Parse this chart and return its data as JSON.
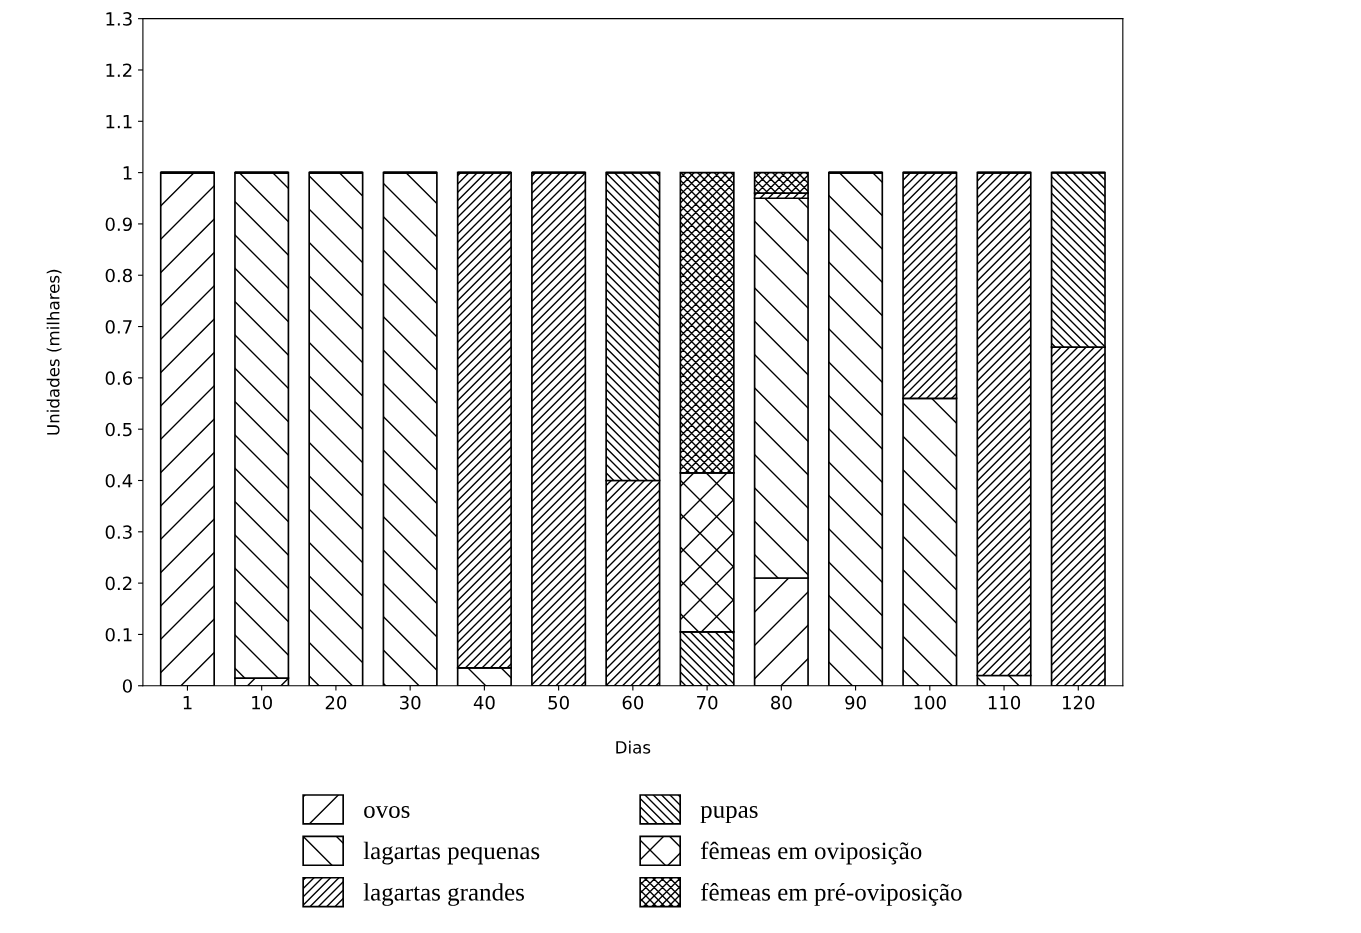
{
  "chart_data": {
    "type": "bar",
    "stacked": true,
    "xlabel": "Dias",
    "ylabel": "Unidades (milhares)",
    "categories": [
      "1",
      "10",
      "20",
      "30",
      "40",
      "50",
      "60",
      "70",
      "80",
      "90",
      "100",
      "110",
      "120"
    ],
    "series": [
      {
        "name": "ovos",
        "color": "#000000",
        "values": [
          1,
          0.015,
          0,
          0,
          0,
          0,
          0,
          0,
          0.21,
          0,
          0,
          0,
          0
        ]
      },
      {
        "name": "lagartas pequenas",
        "color": "#000000",
        "values": [
          0,
          0.985,
          1,
          1,
          0.035,
          0,
          0,
          0,
          0.74,
          1,
          0.56,
          0.02,
          0
        ]
      },
      {
        "name": "lagartas grandes",
        "color": "#000000",
        "values": [
          0,
          0,
          0,
          0,
          0.965,
          1,
          0.4,
          0,
          0.01,
          0,
          0.44,
          0.98,
          0.66
        ]
      },
      {
        "name": "pupas",
        "color": "#000000",
        "values": [
          0,
          0,
          0,
          0,
          0,
          0,
          0.6,
          0.105,
          0,
          0,
          0,
          0,
          0.34
        ]
      },
      {
        "name": "fêmeas em oviposição",
        "color": "#000000",
        "values": [
          0,
          0,
          0,
          0,
          0,
          0,
          0,
          0.31,
          0,
          0,
          0,
          0,
          0
        ]
      },
      {
        "name": "fêmeas em pré-oviposição",
        "color": "#000000",
        "values": [
          0,
          0,
          0,
          0,
          0,
          0,
          0,
          0.585,
          0.04,
          0,
          0,
          0,
          0
        ]
      }
    ],
    "ylim": [
      0,
      1.3
    ],
    "yticks": [
      0,
      0.1,
      0.2,
      0.3,
      0.4,
      0.5,
      0.6,
      0.7,
      0.8,
      0.9,
      1,
      1.1,
      1.2,
      1.3
    ],
    "grid": false,
    "legend": "bottom"
  }
}
